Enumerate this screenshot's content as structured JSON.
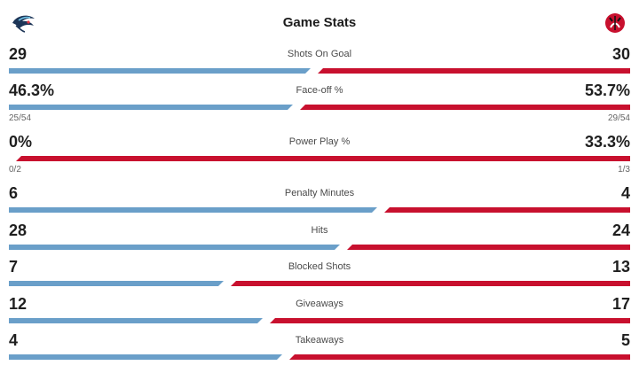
{
  "header": {
    "title": "Game Stats",
    "away_logo": "kraken-logo",
    "home_logo": "devils-logo"
  },
  "colors": {
    "away": "#6a9fc9",
    "home": "#c8102e"
  },
  "stats": [
    {
      "label": "Shots On Goal",
      "away": "29",
      "home": "30",
      "away_share": 0.4915
    },
    {
      "label": "Face-off %",
      "away": "46.3%",
      "home": "53.7%",
      "away_share": 0.463,
      "away_sub": "25/54",
      "home_sub": "29/54"
    },
    {
      "label": "Power Play %",
      "away": "0%",
      "home": "33.3%",
      "away_share": 0.0,
      "away_sub": "0/2",
      "home_sub": "1/3"
    },
    {
      "label": "Penalty Minutes",
      "away": "6",
      "home": "4",
      "away_share": 0.6
    },
    {
      "label": "Hits",
      "away": "28",
      "home": "24",
      "away_share": 0.5385
    },
    {
      "label": "Blocked Shots",
      "away": "7",
      "home": "13",
      "away_share": 0.35
    },
    {
      "label": "Giveaways",
      "away": "12",
      "home": "17",
      "away_share": 0.4138
    },
    {
      "label": "Takeaways",
      "away": "4",
      "home": "5",
      "away_share": 0.4444
    }
  ]
}
